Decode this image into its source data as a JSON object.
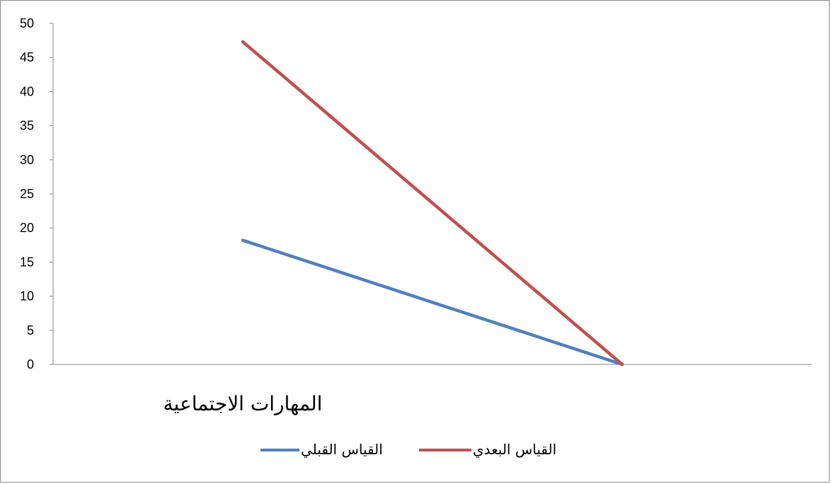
{
  "chart_data": {
    "type": "line",
    "x": [
      "المهارات الاجتماعية",
      ""
    ],
    "categories_shown": [
      "المهارات الاجتماعية"
    ],
    "series": [
      {
        "name": "القياس القبلي",
        "values": [
          18.2,
          0
        ],
        "color": "#4f81bd"
      },
      {
        "name": "القياس البعدي",
        "values": [
          47.3,
          0
        ],
        "color": "#c0504d"
      }
    ],
    "ylim": [
      0,
      50
    ],
    "yticks": [
      "0",
      "5",
      "10",
      "15",
      "20",
      "25",
      "30",
      "35",
      "40",
      "45",
      "50"
    ],
    "grid": false,
    "legend_position": "bottom",
    "title": "",
    "xlabel": "",
    "ylabel": ""
  }
}
